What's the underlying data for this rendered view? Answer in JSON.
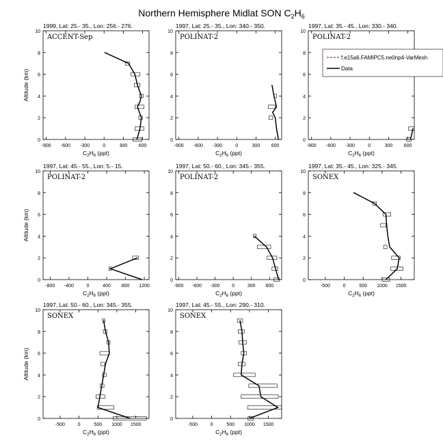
{
  "figure": {
    "title": "Northern Hemisphere Midlat SON C",
    "title_sub": "2",
    "title_tail": "H",
    "title_sub2": "6"
  },
  "legend": {
    "entries": [
      {
        "label": "f.e15a6.FAMIPC5.ne0np4-VarMesh",
        "color": "#dd2222",
        "dash": true
      },
      {
        "label": "Data",
        "color": "#000000",
        "dash": false
      }
    ],
    "placement": "panel-3 top-right"
  },
  "chart_data": [
    {
      "type": "line",
      "header": "1999, Lat: 25.- 35., Lon: 256.- 276.",
      "campaign": "ACCENT-Sep",
      "xlabel": "C2H6 (ppt)",
      "ylabel": "Altitude (km)",
      "xlim": [
        -950,
        700
      ],
      "ylim": [
        0,
        10
      ],
      "xticks": [
        -900,
        -600,
        -300,
        0,
        300,
        600
      ],
      "yticks": [
        0,
        2,
        4,
        6,
        8,
        10
      ],
      "series": [
        {
          "name": "Data",
          "x": [
            10,
            380,
            480,
            520,
            580,
            560,
            520,
            580,
            560,
            510
          ],
          "y": [
            8,
            7,
            6,
            5,
            4,
            3.5,
            3,
            2,
            1,
            0
          ]
        }
      ],
      "ranges": [
        {
          "y": 7,
          "lo": 330,
          "hi": 400
        },
        {
          "y": 6,
          "lo": 420,
          "hi": 560
        },
        {
          "y": 5,
          "lo": 470,
          "hi": 560
        },
        {
          "y": 4,
          "lo": 550,
          "hi": 610
        },
        {
          "y": 3,
          "lo": 480,
          "hi": 620
        },
        {
          "y": 2,
          "lo": 540,
          "hi": 600
        },
        {
          "y": 1,
          "lo": 480,
          "hi": 620
        },
        {
          "y": 0,
          "lo": 450,
          "hi": 590
        }
      ]
    },
    {
      "type": "line",
      "header": "1997, Lat: 25.- 35., Lon: 340.- 350.",
      "campaign": "POLINAT-2",
      "xlabel": "C2H6 (ppt)",
      "ylabel": "",
      "xlim": [
        -950,
        700
      ],
      "ylim": [
        0,
        10
      ],
      "xticks": [
        -900,
        -600,
        -300,
        0,
        300,
        600
      ],
      "yticks": [
        0,
        2,
        4,
        6,
        8,
        10
      ],
      "series": [
        {
          "name": "Data",
          "x": [
            550,
            580,
            620,
            560,
            600,
            620,
            650
          ],
          "y": [
            5,
            4,
            3,
            2.5,
            2,
            1,
            0
          ]
        }
      ],
      "ranges": [
        {
          "y": 4,
          "lo": 580,
          "hi": 620
        },
        {
          "y": 3,
          "lo": 490,
          "hi": 600
        },
        {
          "y": 2,
          "lo": 500,
          "hi": 560
        }
      ]
    },
    {
      "type": "line",
      "header": "1997, Lat: 35.- 45., Lon: 330.- 340.",
      "campaign": "POLINAT-2",
      "xlabel": "C2H6 (ppt)",
      "ylabel": "",
      "xlim": [
        -950,
        700
      ],
      "ylim": [
        0,
        10
      ],
      "xticks": [
        -900,
        -600,
        -300,
        0,
        300,
        600
      ],
      "yticks": [
        0,
        2,
        4,
        6,
        8,
        10
      ],
      "series": [
        {
          "name": "Data",
          "x": [
            680,
            640
          ],
          "y": [
            1,
            0
          ]
        }
      ],
      "ranges": [
        {
          "y": 1,
          "lo": 610,
          "hi": 700
        },
        {
          "y": 0,
          "lo": 580,
          "hi": 650
        }
      ]
    },
    {
      "type": "line",
      "header": "1997, Lat: 45.- 55., Lon: 5.- 15.",
      "campaign": "POLINAT-2",
      "xlabel": "C2H6 (ppt)",
      "ylabel": "Altitude (km)",
      "xlim": [
        -950,
        1300
      ],
      "ylim": [
        0,
        10
      ],
      "xticks": [
        -800,
        -400,
        0,
        400,
        800,
        1200
      ],
      "yticks": [
        0,
        2,
        4,
        6,
        8,
        10
      ],
      "series": [
        {
          "name": "Data",
          "x": [
            1050,
            480,
            1150
          ],
          "y": [
            2,
            1,
            0
          ]
        }
      ],
      "ranges": [
        {
          "y": 2,
          "lo": 950,
          "hi": 1080
        },
        {
          "y": 1,
          "lo": 450,
          "hi": 500
        }
      ]
    },
    {
      "type": "line",
      "header": "1997, Lat: 50.- 60., Lon: 345.- 355.",
      "campaign": "POLINAT-2",
      "xlabel": "C2H6 (ppt)",
      "ylabel": "",
      "xlim": [
        -950,
        800
      ],
      "ylim": [
        0,
        10
      ],
      "xticks": [
        -900,
        -600,
        -300,
        0,
        300,
        600
      ],
      "yticks": [
        0,
        2,
        4,
        6,
        8,
        10
      ],
      "series": [
        {
          "name": "Data",
          "x": [
            350,
            450,
            550,
            650,
            700,
            750
          ],
          "y": [
            4,
            3.5,
            3,
            2,
            1,
            0
          ]
        }
      ],
      "ranges": [
        {
          "y": 4,
          "lo": 330,
          "hi": 380
        },
        {
          "y": 3,
          "lo": 400,
          "hi": 620
        },
        {
          "y": 2,
          "lo": 560,
          "hi": 720
        },
        {
          "y": 1,
          "lo": 640,
          "hi": 740
        },
        {
          "y": 0,
          "lo": 670,
          "hi": 760
        }
      ]
    },
    {
      "type": "line",
      "header": "1997, Lat: 35.- 45., Lon: 325.- 345.",
      "campaign": "SONEX",
      "xlabel": "C2H6 (ppt)",
      "ylabel": "",
      "xlim": [
        -950,
        1850
      ],
      "ylim": [
        0,
        10
      ],
      "xticks": [
        -500,
        0,
        500,
        1000,
        1500
      ],
      "yticks": [
        0,
        2,
        4,
        6,
        8,
        10
      ],
      "series": [
        {
          "name": "Data",
          "x": [
            250,
            800,
            1100,
            1120,
            1150,
            1200,
            1450,
            1400,
            1100
          ],
          "y": [
            8,
            7,
            6,
            5,
            4,
            3,
            2,
            1,
            0
          ]
        }
      ],
      "ranges": [
        {
          "y": 7,
          "lo": 750,
          "hi": 850
        },
        {
          "y": 6,
          "lo": 1030,
          "hi": 1230
        },
        {
          "y": 5,
          "lo": 960,
          "hi": 1100
        },
        {
          "y": 3,
          "lo": 1040,
          "hi": 1130
        },
        {
          "y": 2,
          "lo": 1250,
          "hi": 1480
        },
        {
          "y": 1,
          "lo": 1230,
          "hi": 1550
        },
        {
          "y": 0,
          "lo": 1000,
          "hi": 1200
        }
      ]
    },
    {
      "type": "line",
      "header": "1997, Lat: 50.- 60., Lon: 345.- 355.",
      "campaign": "SONEX",
      "xlabel": "C2H6 (ppt)",
      "ylabel": "Altitude (km)",
      "xlim": [
        -950,
        1850
      ],
      "ylim": [
        0,
        10
      ],
      "xticks": [
        -500,
        0,
        500,
        1000,
        1500
      ],
      "yticks": [
        0,
        2,
        4,
        6,
        8,
        10
      ],
      "series": [
        {
          "name": "Data",
          "x": [
            650,
            700,
            780,
            800,
            700,
            650,
            600,
            550,
            500,
            1350
          ],
          "y": [
            9,
            8,
            7,
            6,
            5,
            4,
            3,
            2,
            1,
            0
          ]
        }
      ],
      "ranges": [
        {
          "y": 9,
          "lo": 620,
          "hi": 680
        },
        {
          "y": 8,
          "lo": 640,
          "hi": 740
        },
        {
          "y": 7,
          "lo": 740,
          "hi": 820
        },
        {
          "y": 6,
          "lo": 550,
          "hi": 800
        },
        {
          "y": 5,
          "lo": 580,
          "hi": 680
        },
        {
          "y": 4,
          "lo": 620,
          "hi": 720
        },
        {
          "y": 3,
          "lo": 560,
          "hi": 660
        },
        {
          "y": 2,
          "lo": 450,
          "hi": 680
        },
        {
          "y": 1,
          "lo": 480,
          "hi": 920
        },
        {
          "y": 0,
          "lo": 900,
          "hi": 1780
        }
      ]
    },
    {
      "type": "line",
      "header": "1997, Lat: 45.- 55., Lon: 290.- 310.",
      "campaign": "SONEX",
      "xlabel": "C2H6 (ppt)",
      "ylabel": "",
      "xlim": [
        -950,
        1850
      ],
      "ylim": [
        0,
        10
      ],
      "xticks": [
        -500,
        0,
        500,
        1000,
        1500
      ],
      "yticks": [
        0,
        2,
        4,
        6,
        8,
        10
      ],
      "series": [
        {
          "name": "Data",
          "x": [
            750,
            800,
            820,
            850,
            800,
            780,
            1250,
            1300,
            1750,
            1000
          ],
          "y": [
            9,
            8,
            7,
            6,
            5,
            4,
            3,
            2,
            1,
            0
          ]
        }
      ],
      "ranges": [
        {
          "y": 9,
          "lo": 680,
          "hi": 820
        },
        {
          "y": 8,
          "lo": 700,
          "hi": 860
        },
        {
          "y": 7,
          "lo": 720,
          "hi": 920
        },
        {
          "y": 6,
          "lo": 780,
          "hi": 920
        },
        {
          "y": 5,
          "lo": 700,
          "hi": 880
        },
        {
          "y": 4,
          "lo": 580,
          "hi": 1150
        },
        {
          "y": 3,
          "lo": 980,
          "hi": 1730
        },
        {
          "y": 2,
          "lo": 780,
          "hi": 1760
        },
        {
          "y": 1,
          "lo": 950,
          "hi": 1850
        },
        {
          "y": 0,
          "lo": 960,
          "hi": 1100
        }
      ]
    }
  ]
}
